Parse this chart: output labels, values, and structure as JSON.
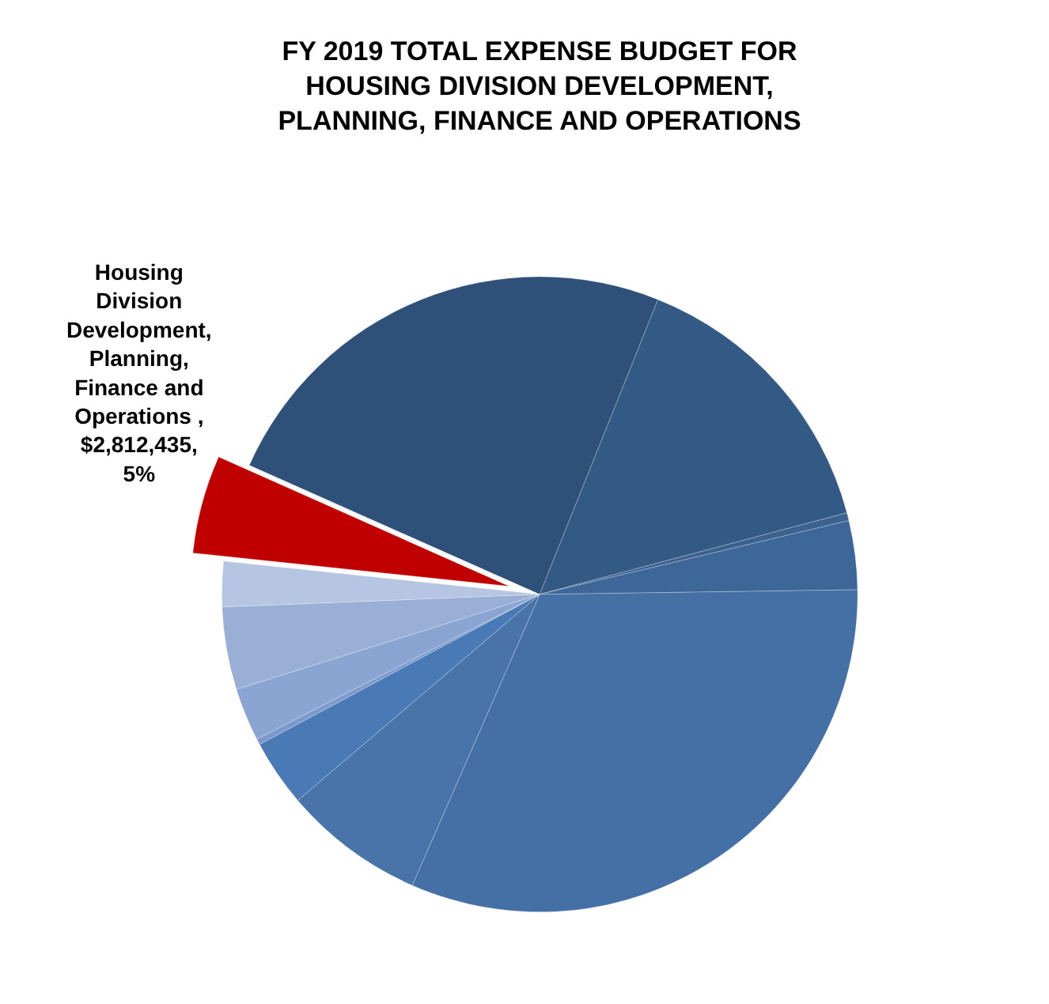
{
  "chart_data": {
    "type": "pie",
    "title": "FY 2019 TOTAL EXPENSE BUDGET FOR HOUSING DIVISION DEVELOPMENT, PLANNING, FINANCE AND OPERATIONS",
    "categories": [
      null,
      null,
      null,
      null,
      null,
      null,
      null,
      null,
      null,
      null,
      null,
      "Housing Division Development, Planning, Finance and Operations"
    ],
    "values": [
      24.4,
      14.8,
      0.4,
      3.5,
      31.8,
      7.2,
      3.4,
      0.3,
      2.7,
      4.2,
      2.3,
      5.0
    ],
    "value_labels": [
      null,
      null,
      null,
      null,
      null,
      null,
      null,
      null,
      null,
      null,
      null,
      ", $2,812,435, 5%"
    ],
    "colors": [
      "#2f5078",
      "#335a84",
      "#3c6290",
      "#3d6699",
      "#4470a5",
      "#4874aa",
      "#4a7ab5",
      "#7b9acb",
      "#8aa5d1",
      "#9aafd6",
      "#b6c5e2",
      "#c00000"
    ],
    "legend": false
  }
}
